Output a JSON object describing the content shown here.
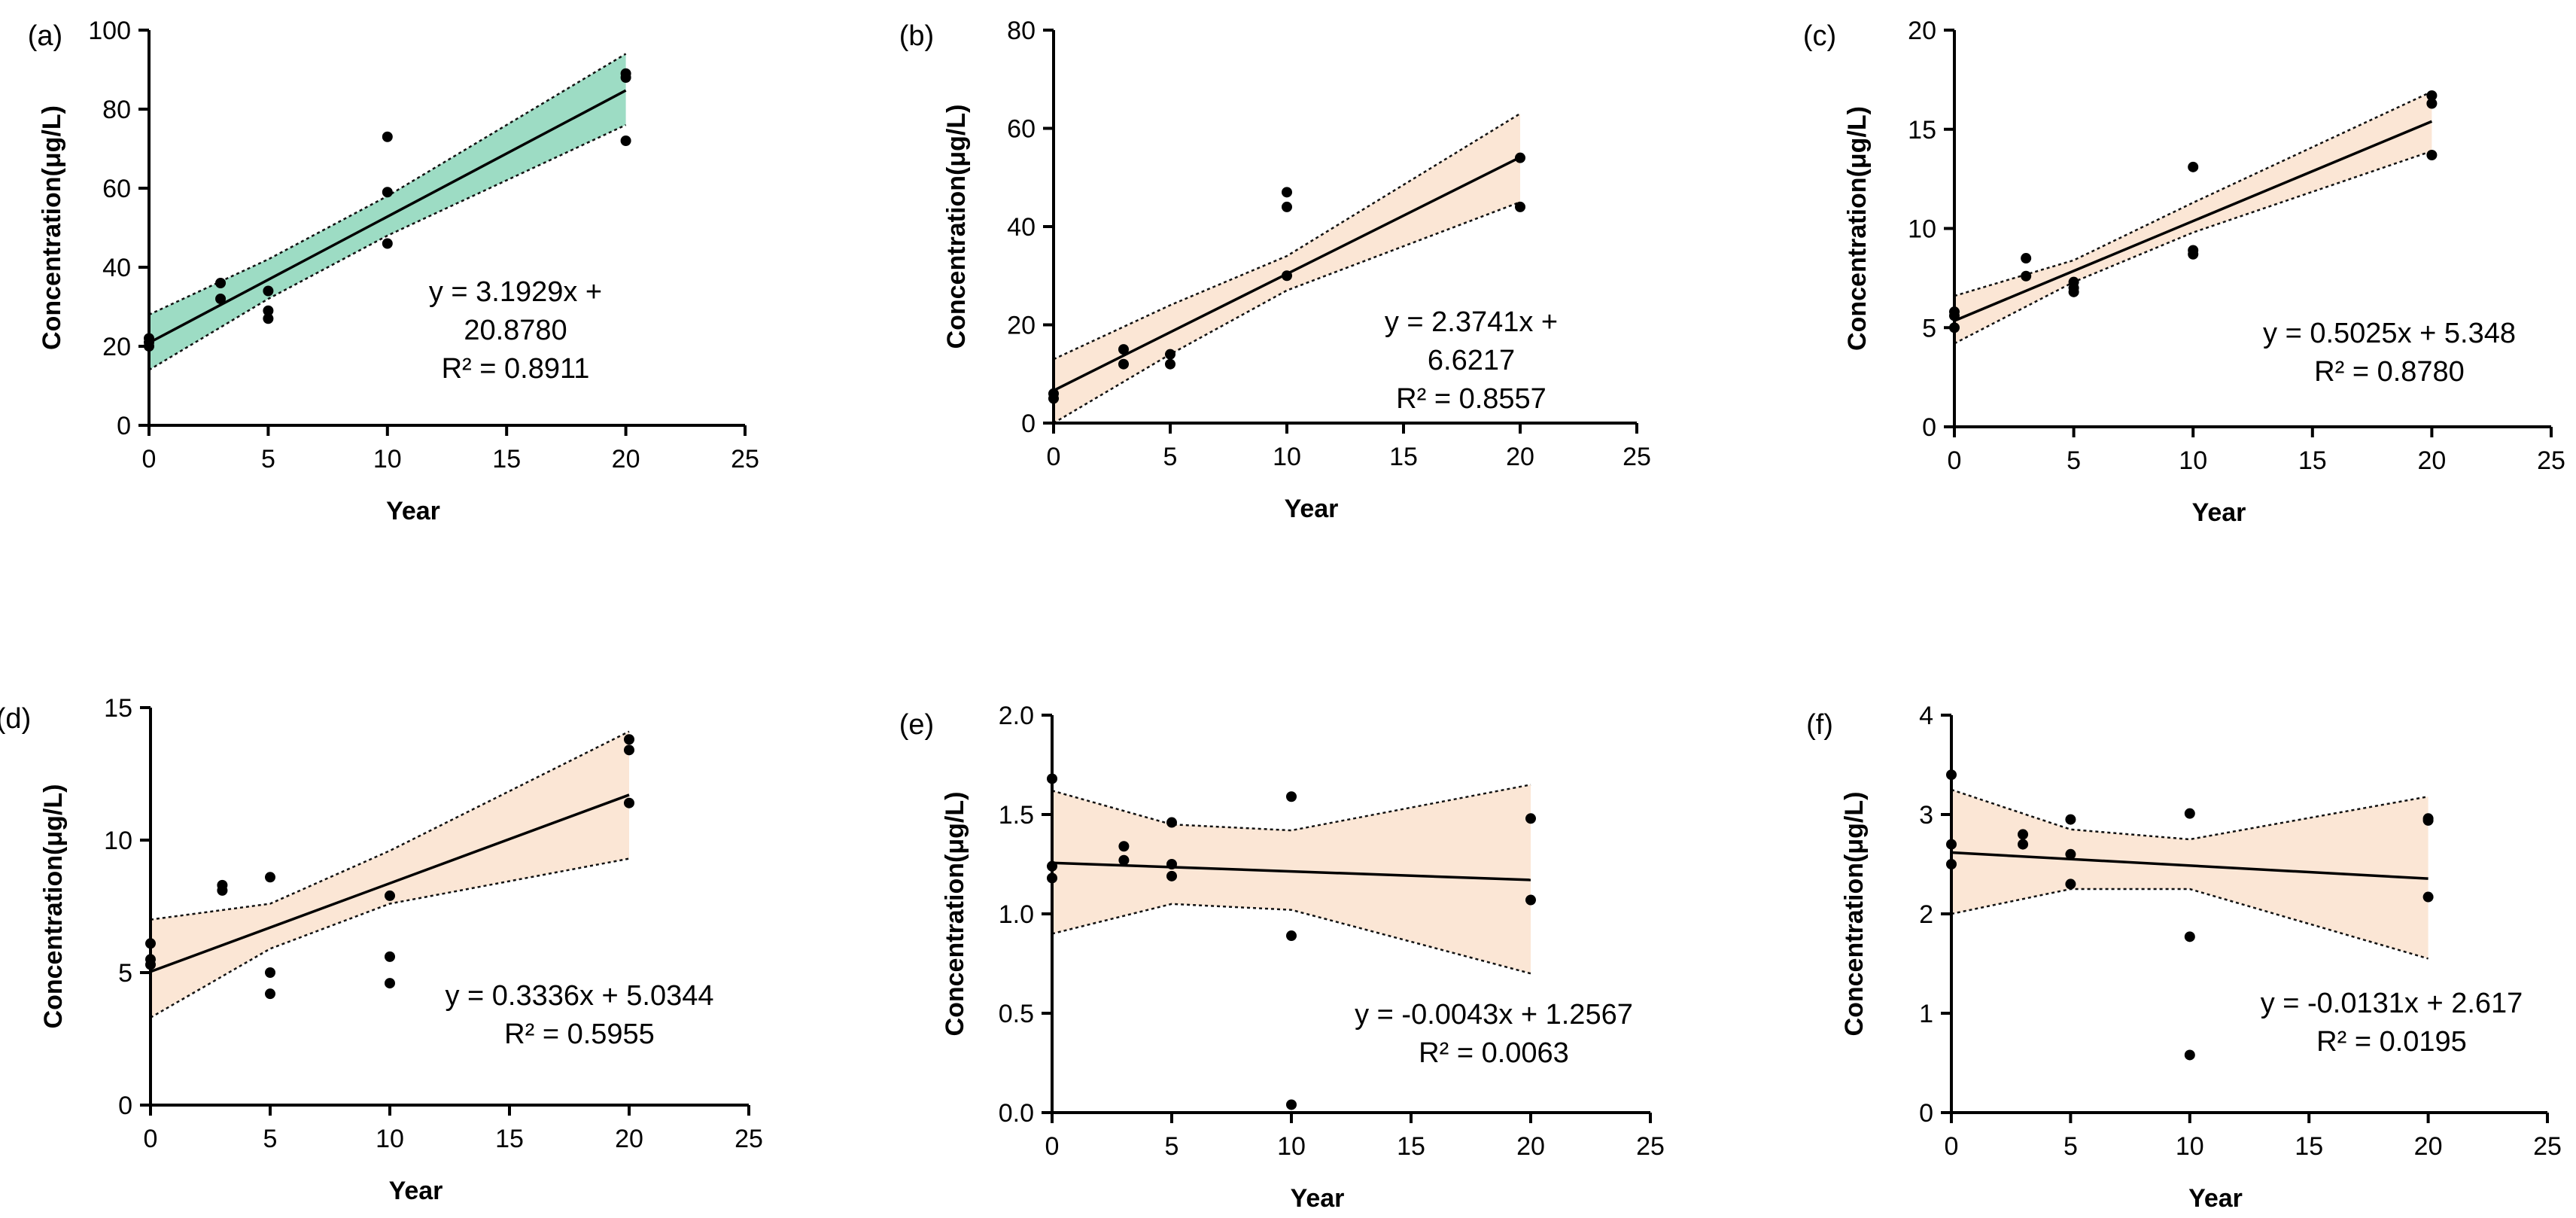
{
  "chart_data": [
    {
      "type": "scatter",
      "panel_label": "(a)",
      "xlabel": "Year",
      "ylabel": "Concentration(μg/L)",
      "xlim": [
        0,
        25
      ],
      "ylim": [
        0,
        100
      ],
      "xticks": [
        "0",
        "5",
        "10",
        "15",
        "20",
        "25"
      ],
      "yticks": [
        "0",
        "20",
        "40",
        "60",
        "80",
        "100"
      ],
      "x": [
        0,
        0,
        0,
        3,
        3,
        5,
        5,
        5,
        10,
        10,
        10,
        20,
        20,
        20
      ],
      "y": [
        20,
        21,
        22,
        32,
        36,
        27,
        29,
        34,
        46,
        59,
        73,
        72,
        88,
        89
      ],
      "fit": {
        "slope": 3.1929,
        "intercept": 20.878,
        "x_range": [
          0,
          20
        ]
      },
      "ci_band": {
        "x": [
          0,
          5,
          10,
          20
        ],
        "lower": [
          14,
          32,
          48,
          76
        ],
        "upper": [
          28,
          42,
          58,
          94
        ]
      },
      "band_color": "#9ddcc4",
      "equation_lines": [
        "y = 3.1929x +",
        "20.8780",
        "R² = 0.8911"
      ]
    },
    {
      "type": "scatter",
      "panel_label": "(b)",
      "xlabel": "Year",
      "ylabel": "Concentration(μg/L)",
      "xlim": [
        0,
        25
      ],
      "ylim": [
        0,
        80
      ],
      "xticks": [
        "0",
        "5",
        "10",
        "15",
        "20",
        "25"
      ],
      "yticks": [
        "0",
        "20",
        "40",
        "60",
        "80"
      ],
      "x": [
        0,
        0,
        3,
        3,
        5,
        5,
        10,
        10,
        10,
        20,
        20
      ],
      "y": [
        5,
        6,
        12,
        15,
        12,
        14,
        30,
        44,
        47,
        44,
        54
      ],
      "fit": {
        "slope": 2.3741,
        "intercept": 6.6217,
        "x_range": [
          0,
          20
        ]
      },
      "ci_band": {
        "x": [
          0,
          5,
          10,
          20
        ],
        "lower": [
          0,
          14,
          27,
          45
        ],
        "upper": [
          13,
          24,
          34,
          63
        ]
      },
      "band_color": "#fbe6d5",
      "equation_lines": [
        "y = 2.3741x +",
        "6.6217",
        "R² = 0.8557"
      ]
    },
    {
      "type": "scatter",
      "panel_label": "(c)",
      "xlabel": "Year",
      "ylabel": "Concentration(μg/L)",
      "xlim": [
        0,
        25
      ],
      "ylim": [
        0,
        20
      ],
      "xticks": [
        "0",
        "5",
        "10",
        "15",
        "20",
        "25"
      ],
      "yticks": [
        "0",
        "5",
        "10",
        "15",
        "20"
      ],
      "x": [
        0,
        0,
        0,
        3,
        3,
        5,
        5,
        5,
        10,
        10,
        10,
        20,
        20,
        20
      ],
      "y": [
        5,
        5.6,
        5.8,
        7.6,
        8.5,
        6.8,
        7.0,
        7.3,
        8.7,
        8.9,
        13.1,
        13.7,
        16.3,
        16.7
      ],
      "fit": {
        "slope": 0.5025,
        "intercept": 5.348,
        "x_range": [
          0,
          20
        ]
      },
      "ci_band": {
        "x": [
          0,
          5,
          10,
          20
        ],
        "lower": [
          4.2,
          7.3,
          9.8,
          13.9
        ],
        "upper": [
          6.6,
          8.4,
          11.3,
          16.9
        ]
      },
      "band_color": "#fbe6d5",
      "equation_lines": [
        "y = 0.5025x + 5.348",
        "R² = 0.8780"
      ]
    },
    {
      "type": "scatter",
      "panel_label": "(d)",
      "xlabel": "Year",
      "ylabel": "Concentration(μg/L)",
      "xlim": [
        0,
        25
      ],
      "ylim": [
        0,
        15
      ],
      "xticks": [
        "0",
        "5",
        "10",
        "15",
        "20",
        "25"
      ],
      "yticks": [
        "0",
        "5",
        "10",
        "15"
      ],
      "x": [
        0,
        0,
        0,
        3,
        3,
        5,
        5,
        5,
        10,
        10,
        10,
        20,
        20,
        20
      ],
      "y": [
        5.3,
        5.5,
        6.1,
        8.1,
        8.3,
        4.2,
        5.0,
        8.6,
        4.6,
        5.6,
        7.9,
        11.4,
        13.4,
        13.8
      ],
      "fit": {
        "slope": 0.3336,
        "intercept": 5.0344,
        "x_range": [
          0,
          20
        ]
      },
      "ci_band": {
        "x": [
          0,
          5,
          10,
          20
        ],
        "lower": [
          3.3,
          5.9,
          7.6,
          9.3
        ],
        "upper": [
          7.0,
          7.6,
          9.6,
          14.1
        ]
      },
      "band_color": "#fbe6d5",
      "equation_lines": [
        "y = 0.3336x + 5.0344",
        "R² = 0.5955"
      ]
    },
    {
      "type": "scatter",
      "panel_label": "(e)",
      "xlabel": "Year",
      "ylabel": "Concentration(μg/L)",
      "xlim": [
        0,
        25
      ],
      "ylim": [
        0,
        2.0
      ],
      "xticks": [
        "0",
        "5",
        "10",
        "15",
        "20",
        "25"
      ],
      "yticks": [
        "0.0",
        "0.5",
        "1.0",
        "1.5",
        "2.0"
      ],
      "x": [
        0,
        0,
        0,
        3,
        3,
        5,
        5,
        5,
        10,
        10,
        10,
        20,
        20
      ],
      "y": [
        1.18,
        1.24,
        1.68,
        1.27,
        1.34,
        1.19,
        1.25,
        1.46,
        0.04,
        0.89,
        1.59,
        1.07,
        1.48
      ],
      "fit": {
        "slope": -0.0043,
        "intercept": 1.2567,
        "x_range": [
          0,
          20
        ]
      },
      "ci_band": {
        "x": [
          0,
          5,
          10,
          20
        ],
        "lower": [
          0.9,
          1.05,
          1.02,
          0.7
        ],
        "upper": [
          1.62,
          1.45,
          1.42,
          1.65
        ]
      },
      "band_color": "#fbe6d5",
      "equation_lines": [
        "y = -0.0043x + 1.2567",
        "R² = 0.0063"
      ]
    },
    {
      "type": "scatter",
      "panel_label": "(f)",
      "xlabel": "Year",
      "ylabel": "Concentration(μg/L)",
      "xlim": [
        0,
        25
      ],
      "ylim": [
        0,
        4
      ],
      "xticks": [
        "0",
        "5",
        "10",
        "15",
        "20",
        "25"
      ],
      "yticks": [
        "0",
        "1",
        "2",
        "3",
        "4"
      ],
      "x": [
        0,
        0,
        0,
        3,
        3,
        5,
        5,
        5,
        10,
        10,
        10,
        20,
        20,
        20
      ],
      "y": [
        2.5,
        2.7,
        3.4,
        2.7,
        2.8,
        2.3,
        2.6,
        2.95,
        0.58,
        1.77,
        3.01,
        2.17,
        2.94,
        2.96
      ],
      "fit": {
        "slope": -0.0131,
        "intercept": 2.617,
        "x_range": [
          0,
          20
        ]
      },
      "ci_band": {
        "x": [
          0,
          5,
          10,
          20
        ],
        "lower": [
          2.0,
          2.25,
          2.25,
          1.55
        ],
        "upper": [
          3.25,
          2.85,
          2.75,
          3.18
        ]
      },
      "band_color": "#fbe6d5",
      "equation_lines": [
        "y = -0.0131x + 2.617",
        "R² = 0.0195"
      ]
    }
  ]
}
